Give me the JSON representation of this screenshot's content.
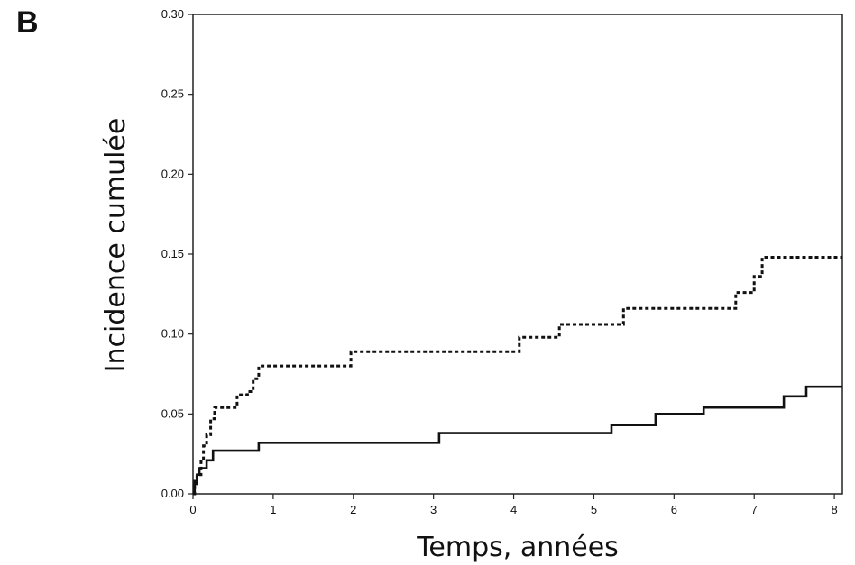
{
  "panel_label": "B",
  "chart_data": {
    "type": "line",
    "title": "",
    "xlabel": "Temps, années",
    "ylabel": "Incidence cumulée",
    "xlim": [
      0,
      8.1
    ],
    "ylim": [
      0,
      0.3
    ],
    "xticks": [
      0,
      1,
      2,
      3,
      4,
      5,
      6,
      7,
      8
    ],
    "yticks": [
      "0.00",
      "0.05",
      "0.10",
      "0.15",
      "0.20",
      "0.25",
      "0.30"
    ],
    "grid": false,
    "legend": "none",
    "step": true,
    "series": [
      {
        "style": "dotted",
        "color": "#111111",
        "points": [
          [
            0.0,
            0.0
          ],
          [
            0.02,
            0.005
          ],
          [
            0.05,
            0.012
          ],
          [
            0.1,
            0.02
          ],
          [
            0.13,
            0.03
          ],
          [
            0.17,
            0.037
          ],
          [
            0.22,
            0.047
          ],
          [
            0.27,
            0.054
          ],
          [
            0.55,
            0.062
          ],
          [
            0.68,
            0.064
          ],
          [
            0.75,
            0.072
          ],
          [
            0.82,
            0.08
          ],
          [
            1.97,
            0.089
          ],
          [
            4.07,
            0.098
          ],
          [
            4.57,
            0.106
          ],
          [
            5.37,
            0.116
          ],
          [
            6.77,
            0.126
          ],
          [
            7.0,
            0.136
          ],
          [
            7.1,
            0.148
          ],
          [
            8.1,
            0.148
          ]
        ]
      },
      {
        "style": "solid",
        "color": "#111111",
        "points": [
          [
            0.0,
            0.0
          ],
          [
            0.02,
            0.008
          ],
          [
            0.05,
            0.012
          ],
          [
            0.08,
            0.016
          ],
          [
            0.17,
            0.021
          ],
          [
            0.25,
            0.027
          ],
          [
            0.82,
            0.032
          ],
          [
            3.07,
            0.038
          ],
          [
            5.22,
            0.043
          ],
          [
            5.77,
            0.05
          ],
          [
            6.37,
            0.054
          ],
          [
            7.37,
            0.061
          ],
          [
            7.65,
            0.067
          ],
          [
            8.1,
            0.067
          ]
        ]
      }
    ]
  }
}
